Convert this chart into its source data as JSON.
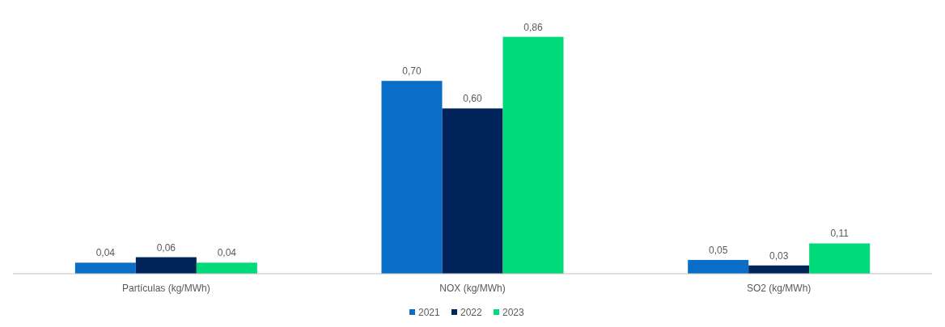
{
  "chart_data": {
    "type": "bar",
    "categories": [
      "Partículas (kg/MWh)",
      "NOX (kg/MWh)",
      "SO2 (kg/MWh)"
    ],
    "series": [
      {
        "name": "2021",
        "color": "#0a6ec8",
        "values": [
          0.04,
          0.7,
          0.05
        ],
        "value_labels": [
          "0,04",
          "0,70",
          "0,05"
        ]
      },
      {
        "name": "2022",
        "color": "#00245a",
        "values": [
          0.06,
          0.6,
          0.03
        ],
        "value_labels": [
          "0,06",
          "0,60",
          "0,03"
        ]
      },
      {
        "name": "2023",
        "color": "#00da78",
        "values": [
          0.04,
          0.86,
          0.11
        ],
        "value_labels": [
          "0,04",
          "0,86",
          "0,11"
        ]
      }
    ],
    "legend": "bottom",
    "grid": false
  }
}
